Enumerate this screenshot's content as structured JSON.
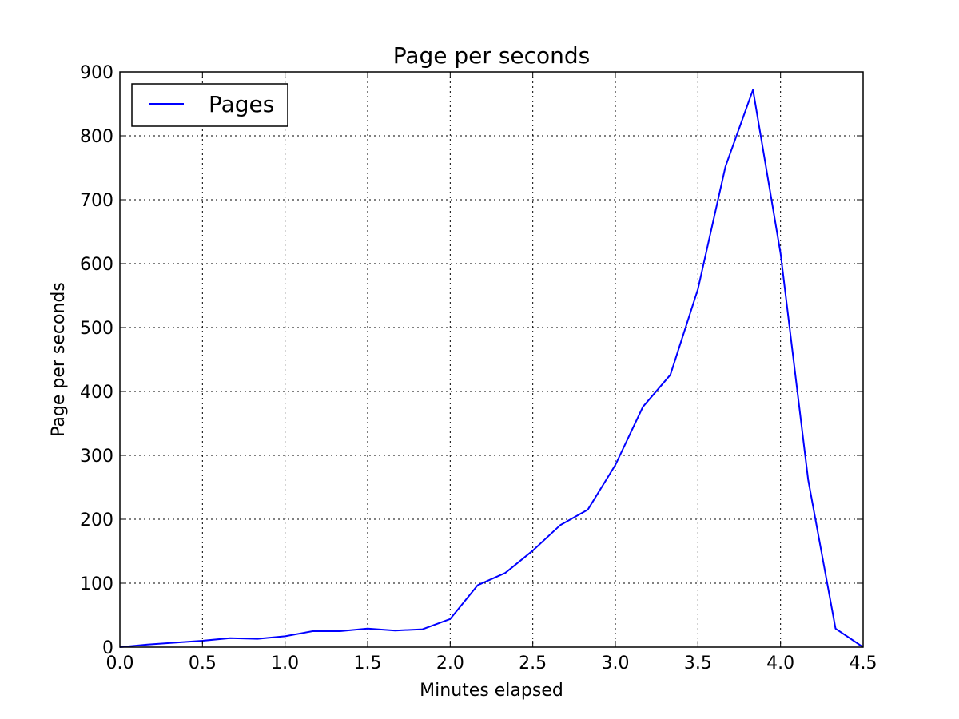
{
  "chart_data": {
    "type": "line",
    "title": "Page per seconds",
    "xlabel": "Minutes elapsed",
    "ylabel": "Page per seconds",
    "xlim": [
      0,
      4.5
    ],
    "ylim": [
      0,
      900
    ],
    "xticks": [
      0.0,
      0.5,
      1.0,
      1.5,
      2.0,
      2.5,
      3.0,
      3.5,
      4.0,
      4.5
    ],
    "xtick_labels": [
      "0.0",
      "0.5",
      "1.0",
      "1.5",
      "2.0",
      "2.5",
      "3.0",
      "3.5",
      "4.0",
      "4.5"
    ],
    "yticks": [
      0,
      100,
      200,
      300,
      400,
      500,
      600,
      700,
      800,
      900
    ],
    "ytick_labels": [
      "0",
      "100",
      "200",
      "300",
      "400",
      "500",
      "600",
      "700",
      "800",
      "900"
    ],
    "grid": true,
    "legend_position": "top-left",
    "series": [
      {
        "name": "Pages",
        "color": "#0000ff",
        "x": [
          0.0,
          0.167,
          0.333,
          0.5,
          0.667,
          0.833,
          1.0,
          1.167,
          1.333,
          1.5,
          1.667,
          1.833,
          2.0,
          2.167,
          2.333,
          2.5,
          2.667,
          2.833,
          3.0,
          3.167,
          3.333,
          3.5,
          3.667,
          3.833,
          4.0,
          4.167,
          4.333,
          4.5
        ],
        "y": [
          0,
          4,
          7,
          10,
          14,
          13,
          17,
          25,
          25,
          29,
          26,
          28,
          44,
          97,
          116,
          151,
          191,
          215,
          285,
          376,
          426,
          560,
          752,
          872,
          616,
          262,
          29,
          0
        ]
      }
    ]
  }
}
